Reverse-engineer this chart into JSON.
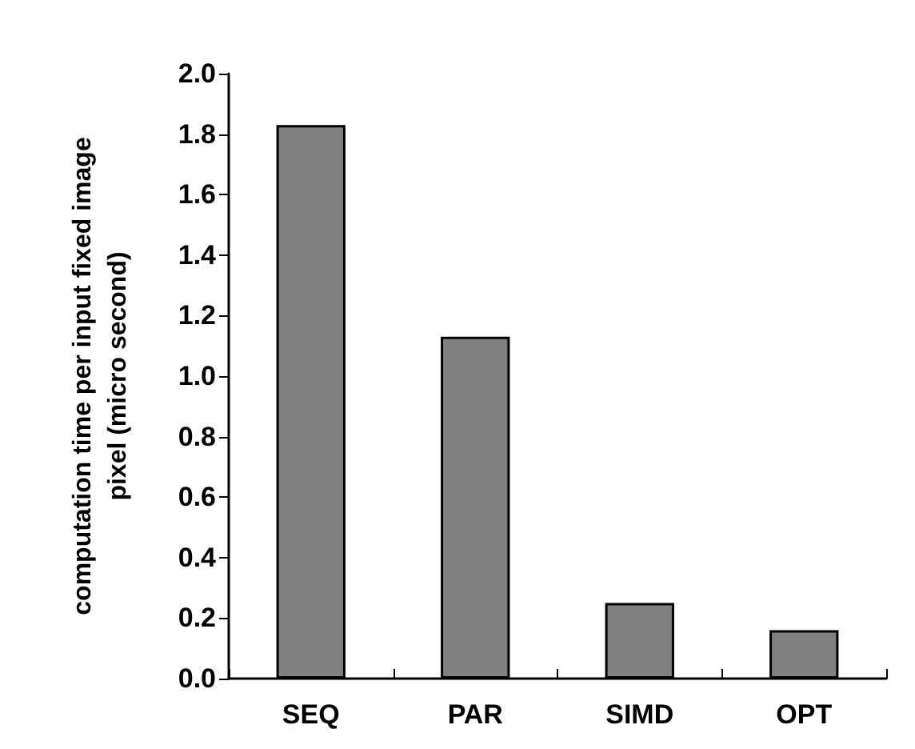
{
  "chart_data": {
    "type": "bar",
    "ylabel": "computation time per input fixed image pixel (micro second)",
    "categories": [
      "SEQ",
      "PAR",
      "SIMD",
      "OPT"
    ],
    "values": [
      1.83,
      1.13,
      0.25,
      0.16
    ],
    "color": "#808080",
    "ylim": [
      0,
      2
    ],
    "yticks": [
      {
        "value": 0,
        "label": "0.0"
      },
      0.2,
      0.4,
      0.6,
      0.8,
      {
        "value": 1,
        "label": "1.0"
      },
      1.2,
      1.4,
      1.6,
      1.8,
      {
        "value": 2,
        "label": "2.0"
      }
    ],
    "grid": false
  }
}
